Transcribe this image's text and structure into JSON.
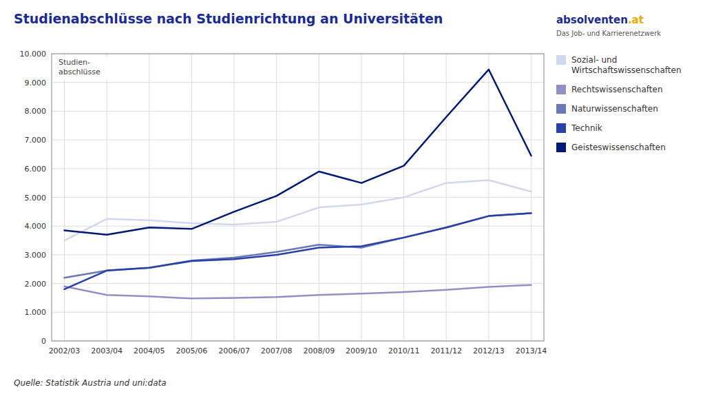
{
  "chart_data": {
    "type": "line",
    "title": "Studienabschlüsse nach Studienrichtung an Universitäten",
    "y_label": "Studien-\nabschlüsse",
    "annotations": [
      "Quelle: Statistik Austria und uni:data",
      "absolventen.at",
      "Das Job- und Karrierenetzwerk"
    ],
    "categories": [
      "2002/03",
      "2003/04",
      "2004/05",
      "2005/06",
      "2006/07",
      "2007/08",
      "2008/09",
      "2009/10",
      "2010/11",
      "2011/12",
      "2012/13",
      "2013/14"
    ],
    "series": [
      {
        "name": "Sozial- und\nWirtschaftswissenschaften",
        "color": "#d0d8ee",
        "values": [
          3500,
          4250,
          4200,
          4100,
          4050,
          4150,
          4650,
          4750,
          5000,
          5500,
          5600,
          5200
        ]
      },
      {
        "name": "Rechtswissenschaften",
        "color": "#9090c8",
        "values": [
          1900,
          1600,
          1550,
          1480,
          1500,
          1530,
          1600,
          1650,
          1700,
          1780,
          1880,
          1950
        ]
      },
      {
        "name": "Naturwissenschaften",
        "color": "#6878b8",
        "values": [
          2200,
          2450,
          2550,
          2800,
          2900,
          3100,
          3350,
          3250,
          3600,
          3950,
          4350,
          4450
        ]
      },
      {
        "name": "Technik",
        "color": "#2840a8",
        "values": [
          1800,
          2450,
          2550,
          2780,
          2850,
          3000,
          3250,
          3300,
          3600,
          3950,
          4350,
          4450
        ]
      },
      {
        "name": "Geisteswissenschaften",
        "color": "#001878",
        "values": [
          3850,
          3700,
          3950,
          3900,
          4500,
          5050,
          5900,
          5500,
          6100,
          7800,
          9450,
          6450
        ]
      }
    ],
    "ylim": [
      0,
      10000
    ],
    "yticks": [
      0,
      {
        "value": 1000,
        "label": "1.000"
      },
      {
        "value": 2000,
        "label": "2.000"
      },
      {
        "value": 3000,
        "label": "3.000"
      },
      {
        "value": 4000,
        "label": "4.000"
      },
      {
        "value": 5000,
        "label": "5.000"
      },
      {
        "value": 6000,
        "label": "6.000"
      },
      {
        "value": 7000,
        "label": "7.000"
      },
      {
        "value": 8000,
        "label": "8.000"
      },
      {
        "value": 9000,
        "label": "9.000"
      },
      {
        "value": 10000,
        "label": "10.000"
      }
    ],
    "grid": true,
    "legend": "right"
  }
}
